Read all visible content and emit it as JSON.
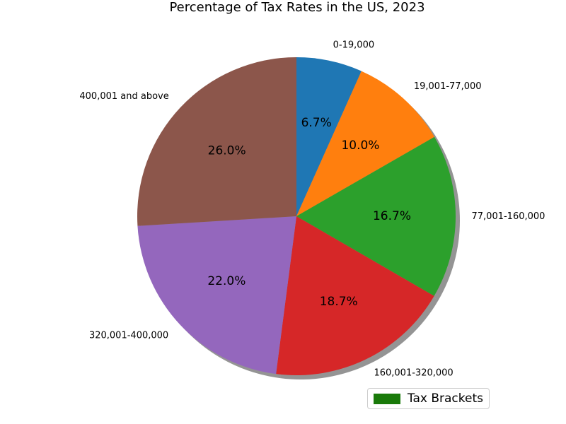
{
  "chart_data": {
    "type": "pie",
    "title": "Percentage of Tax Rates in the US, 2023",
    "categories": [
      "0-19,000",
      "19,001-77,000",
      "77,001-160,000",
      "160,001-320,000",
      "320,001-400,000",
      "400,001 and above"
    ],
    "values": [
      6.7,
      10.0,
      16.7,
      18.7,
      22.0,
      26.0
    ],
    "percent_labels": [
      "6.7%",
      "10.0%",
      "16.7%",
      "18.7%",
      "22.0%",
      "26.0%"
    ],
    "colors": [
      "#1f77b4",
      "#ff7f0e",
      "#2ca02c",
      "#d62728",
      "#9467bd",
      "#8c564b"
    ],
    "start_angle": 90,
    "direction": "clockwise",
    "shadow": true,
    "legend": {
      "placement": "lower-right",
      "entries": [
        {
          "label": "Tax Brackets",
          "color": "#1a7a0a"
        }
      ]
    }
  }
}
